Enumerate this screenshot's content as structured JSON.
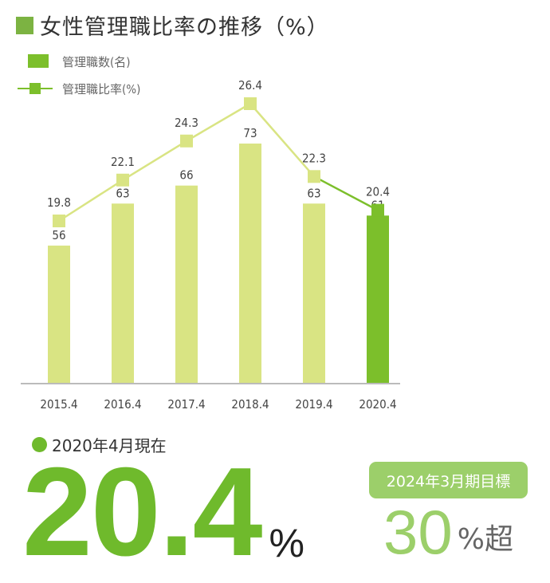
{
  "title": "女性管理職比率の推移（%）",
  "legend": {
    "bars": "管理職数(名)",
    "line": "管理職比率(%)"
  },
  "colors": {
    "accent": "#7cb342",
    "bar_light": "#d9e483",
    "bar_current": "#7cbf2b",
    "line_light": "#d9e483",
    "line_current": "#7cbf2b",
    "big_number": "#6fba2c",
    "badge": "#9ccf6a"
  },
  "chart_data": {
    "type": "bar",
    "title": "女性管理職比率の推移（%）",
    "categories": [
      "2015.4",
      "2016.4",
      "2017.4",
      "2018.4",
      "2019.4",
      "2020.4"
    ],
    "series": [
      {
        "name": "管理職数(名)",
        "type": "bar",
        "values": [
          56,
          63,
          66,
          73,
          63,
          61
        ]
      },
      {
        "name": "管理職比率(%)",
        "type": "line",
        "values": [
          19.8,
          22.1,
          24.3,
          26.4,
          22.3,
          20.4
        ]
      }
    ],
    "xlabel": "",
    "ylabel": "",
    "grid": false,
    "legend_position": "top-left",
    "highlight_category": "2020.4"
  },
  "current": {
    "label": "2020年4月現在",
    "value": "20.4",
    "unit": "%"
  },
  "target": {
    "label": "2024年3月期目標",
    "value": "30",
    "unit": "%超"
  }
}
